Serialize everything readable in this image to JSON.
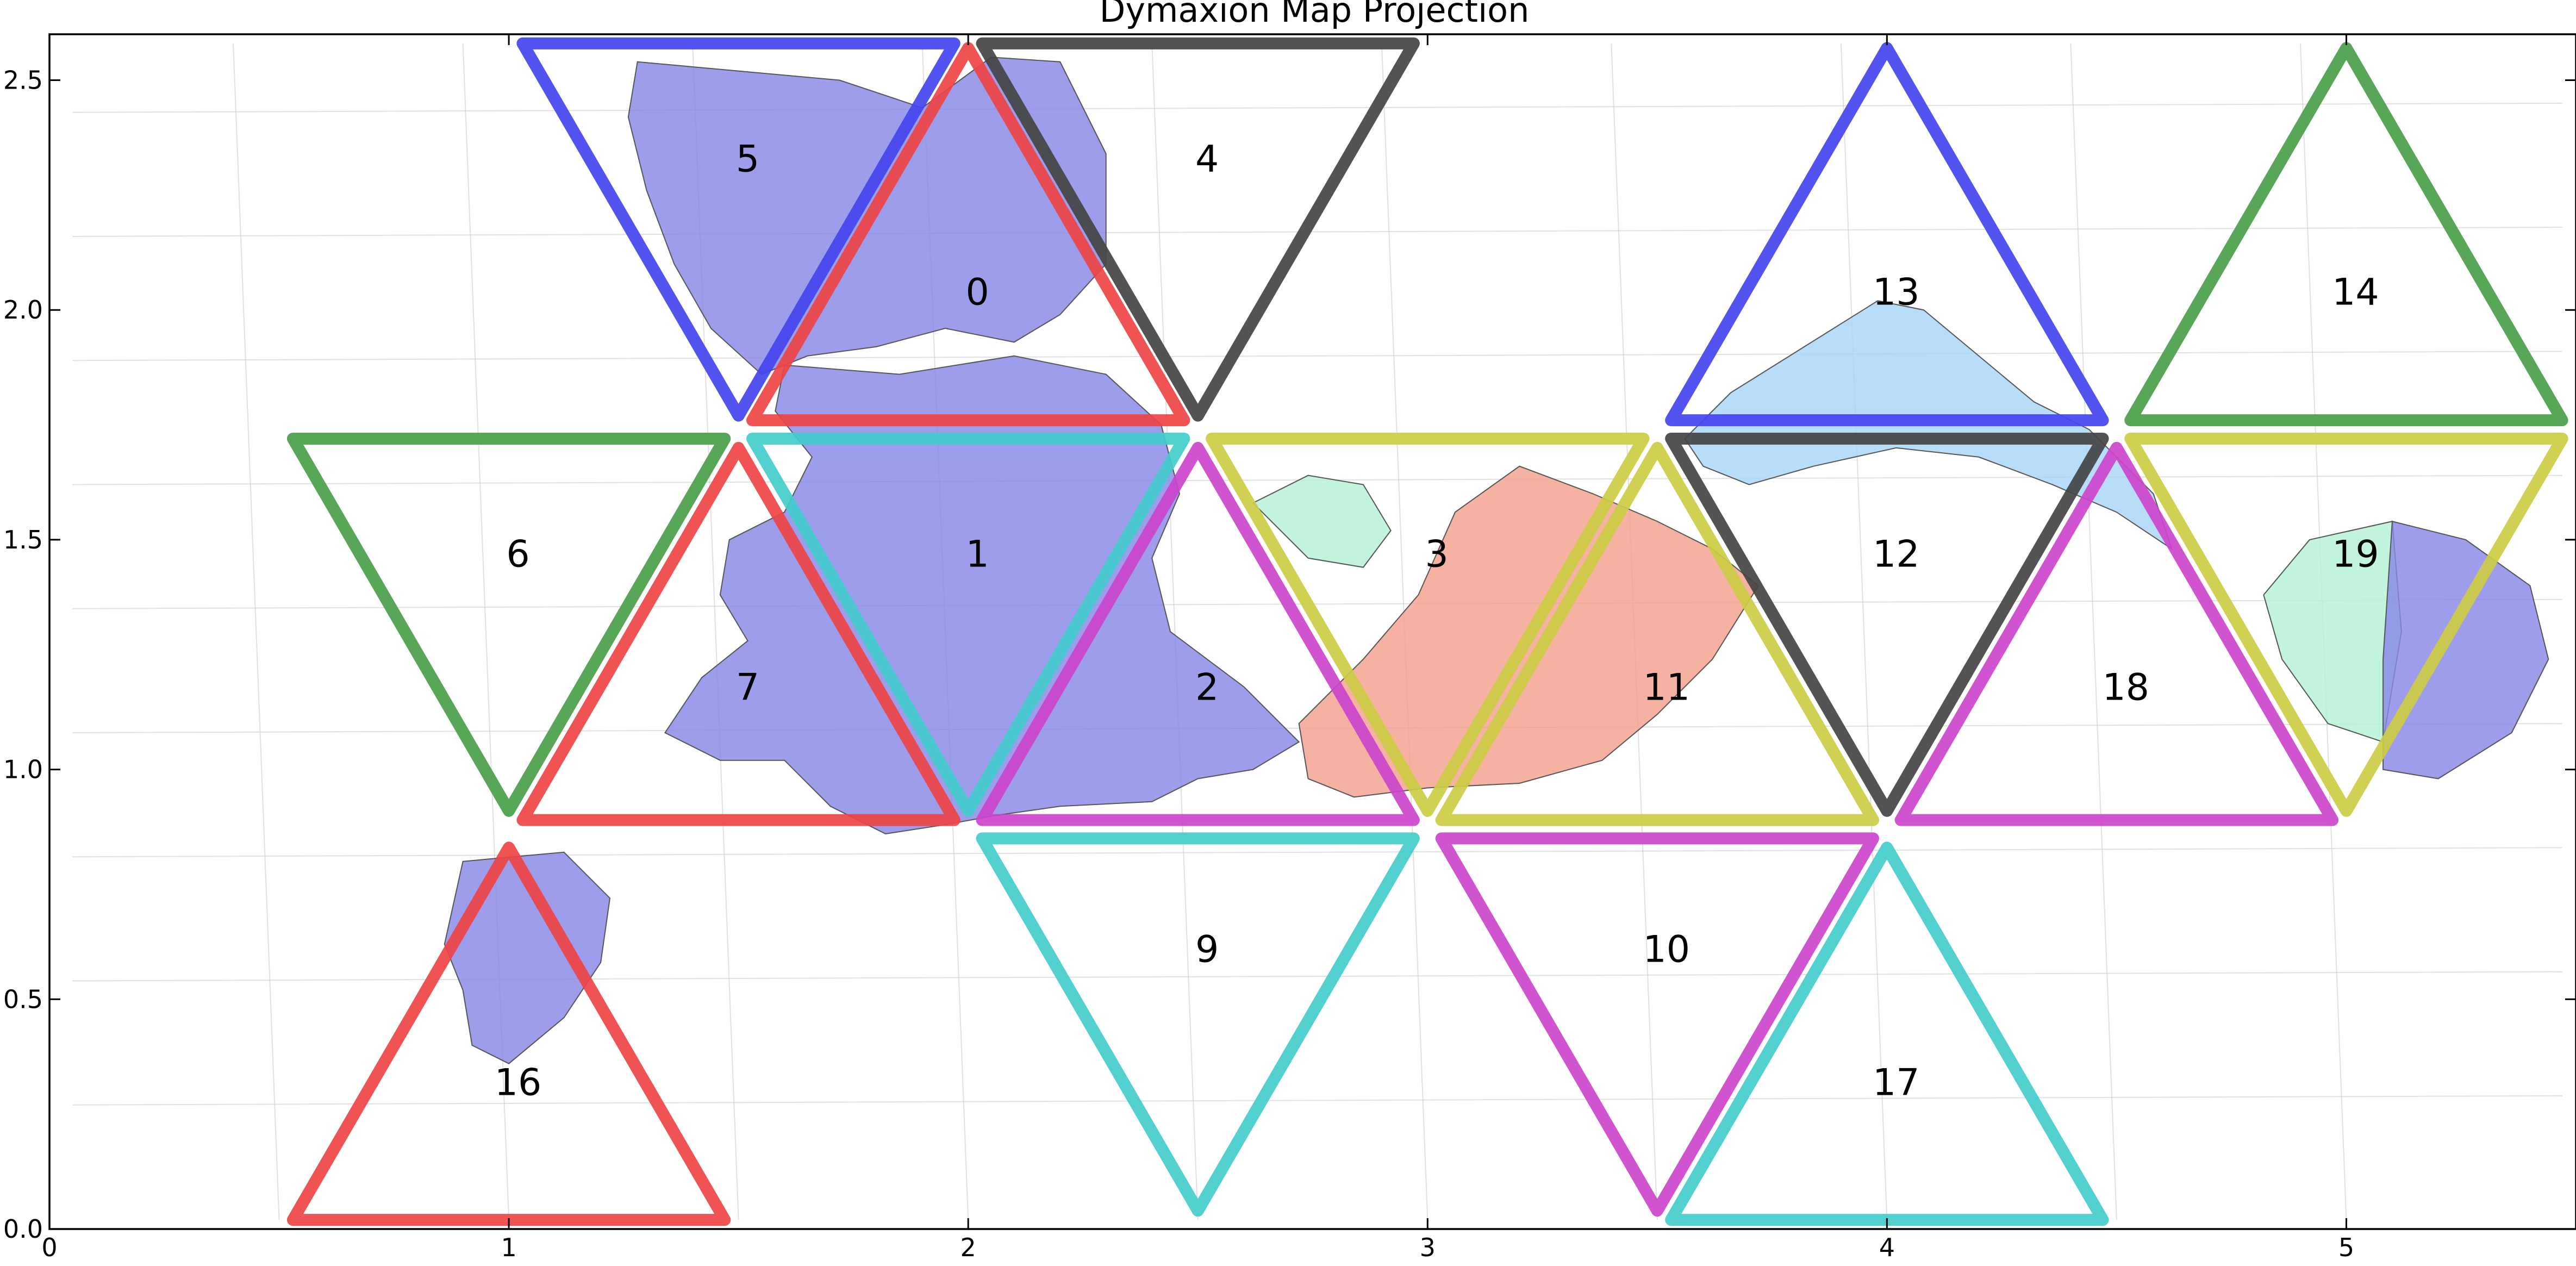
{
  "chart_data": {
    "type": "scatter",
    "title": "Dymaxion Map Projection",
    "xlim": [
      0,
      5.5
    ],
    "ylim": [
      0,
      2.6
    ],
    "xticks": [
      "0",
      "1",
      "2",
      "3",
      "4",
      "5"
    ],
    "yticks": [
      "0.0",
      "0.5",
      "1.0",
      "1.5",
      "2.0",
      "2.5"
    ],
    "grid": false,
    "colors": {
      "blue": "#4444ee",
      "red": "#ee4444",
      "black": "#444444",
      "green": "#4a9f4a",
      "cyan": "#44cccc",
      "magenta": "#cc44cc",
      "olive": "#cccc44"
    },
    "faces": [
      {
        "id": "0",
        "label_pos": [
          2.02,
          2.04
        ],
        "color": "red",
        "vertices": [
          [
            2.0,
            2.57
          ],
          [
            1.53,
            1.76
          ],
          [
            2.47,
            1.76
          ]
        ]
      },
      {
        "id": "1",
        "label_pos": [
          2.02,
          1.47
        ],
        "color": "cyan",
        "vertices": [
          [
            1.53,
            1.72
          ],
          [
            2.47,
            1.72
          ],
          [
            2.0,
            0.91
          ]
        ]
      },
      {
        "id": "2",
        "label_pos": [
          2.52,
          1.18
        ],
        "color": "magenta",
        "vertices": [
          [
            2.5,
            1.7
          ],
          [
            2.03,
            0.89
          ],
          [
            2.97,
            0.89
          ]
        ]
      },
      {
        "id": "3",
        "label_pos": [
          3.02,
          1.47
        ],
        "color": "olive",
        "vertices": [
          [
            2.53,
            1.72
          ],
          [
            3.47,
            1.72
          ],
          [
            3.0,
            0.91
          ]
        ]
      },
      {
        "id": "4",
        "label_pos": [
          2.52,
          2.33
        ],
        "color": "black",
        "vertices": [
          [
            2.03,
            2.58
          ],
          [
            2.97,
            2.58
          ],
          [
            2.5,
            1.77
          ]
        ]
      },
      {
        "id": "5",
        "label_pos": [
          1.52,
          2.33
        ],
        "color": "blue",
        "vertices": [
          [
            1.03,
            2.58
          ],
          [
            1.97,
            2.58
          ],
          [
            1.5,
            1.77
          ]
        ]
      },
      {
        "id": "6",
        "label_pos": [
          1.02,
          1.47
        ],
        "color": "green",
        "vertices": [
          [
            0.53,
            1.72
          ],
          [
            1.47,
            1.72
          ],
          [
            1.0,
            0.91
          ]
        ]
      },
      {
        "id": "7",
        "label_pos": [
          1.52,
          1.18
        ],
        "color": "red",
        "vertices": [
          [
            1.5,
            1.7
          ],
          [
            1.03,
            0.89
          ],
          [
            1.97,
            0.89
          ]
        ]
      },
      {
        "id": "9",
        "label_pos": [
          2.52,
          0.61
        ],
        "color": "cyan",
        "vertices": [
          [
            2.03,
            0.85
          ],
          [
            2.97,
            0.85
          ],
          [
            2.5,
            0.04
          ]
        ]
      },
      {
        "id": "10",
        "label_pos": [
          3.52,
          0.61
        ],
        "color": "magenta",
        "vertices": [
          [
            3.03,
            0.85
          ],
          [
            3.97,
            0.85
          ],
          [
            3.5,
            0.04
          ]
        ]
      },
      {
        "id": "11",
        "label_pos": [
          3.52,
          1.18
        ],
        "color": "olive",
        "vertices": [
          [
            3.5,
            1.7
          ],
          [
            3.03,
            0.89
          ],
          [
            3.97,
            0.89
          ]
        ]
      },
      {
        "id": "12",
        "label_pos": [
          4.02,
          1.47
        ],
        "color": "black",
        "vertices": [
          [
            3.53,
            1.72
          ],
          [
            4.47,
            1.72
          ],
          [
            4.0,
            0.91
          ]
        ]
      },
      {
        "id": "13",
        "label_pos": [
          4.02,
          2.04
        ],
        "color": "blue",
        "vertices": [
          [
            4.0,
            2.57
          ],
          [
            3.53,
            1.76
          ],
          [
            4.47,
            1.76
          ]
        ]
      },
      {
        "id": "14",
        "label_pos": [
          5.02,
          2.04
        ],
        "color": "green",
        "vertices": [
          [
            5.0,
            2.57
          ],
          [
            4.53,
            1.76
          ],
          [
            5.47,
            1.76
          ]
        ]
      },
      {
        "id": "16",
        "label_pos": [
          1.02,
          0.32
        ],
        "color": "red",
        "vertices": [
          [
            1.0,
            0.83
          ],
          [
            0.53,
            0.02
          ],
          [
            1.47,
            0.02
          ]
        ]
      },
      {
        "id": "17",
        "label_pos": [
          4.02,
          0.32
        ],
        "color": "cyan",
        "vertices": [
          [
            4.0,
            0.83
          ],
          [
            3.53,
            0.02
          ],
          [
            4.47,
            0.02
          ]
        ]
      },
      {
        "id": "18",
        "label_pos": [
          4.52,
          1.18
        ],
        "color": "magenta",
        "vertices": [
          [
            4.5,
            1.7
          ],
          [
            4.03,
            0.89
          ],
          [
            4.97,
            0.89
          ]
        ]
      },
      {
        "id": "19",
        "label_pos": [
          5.02,
          1.47
        ],
        "color": "olive",
        "vertices": [
          [
            4.53,
            1.72
          ],
          [
            5.47,
            1.72
          ],
          [
            5.0,
            0.91
          ]
        ]
      }
    ],
    "land": [
      {
        "name": "north-america",
        "color": "#8888e8",
        "points": [
          [
            1.28,
            2.54
          ],
          [
            1.5,
            2.52
          ],
          [
            1.72,
            2.5
          ],
          [
            1.9,
            2.44
          ],
          [
            2.05,
            2.55
          ],
          [
            2.2,
            2.54
          ],
          [
            2.3,
            2.34
          ],
          [
            2.3,
            2.1
          ],
          [
            2.2,
            1.99
          ],
          [
            2.1,
            1.93
          ],
          [
            1.95,
            1.96
          ],
          [
            1.8,
            1.92
          ],
          [
            1.65,
            1.9
          ],
          [
            1.55,
            1.86
          ],
          [
            1.44,
            1.96
          ],
          [
            1.36,
            2.1
          ],
          [
            1.3,
            2.26
          ],
          [
            1.26,
            2.42
          ]
        ]
      },
      {
        "name": "eurasia",
        "color": "#8888e8",
        "points": [
          [
            1.6,
            1.88
          ],
          [
            1.85,
            1.86
          ],
          [
            2.1,
            1.9
          ],
          [
            2.3,
            1.86
          ],
          [
            2.42,
            1.75
          ],
          [
            2.46,
            1.6
          ],
          [
            2.4,
            1.46
          ],
          [
            2.44,
            1.3
          ],
          [
            2.6,
            1.18
          ],
          [
            2.72,
            1.06
          ],
          [
            2.62,
            1.0
          ],
          [
            2.5,
            0.98
          ],
          [
            2.4,
            0.93
          ],
          [
            2.2,
            0.92
          ],
          [
            2.06,
            0.9
          ],
          [
            1.95,
            0.88
          ],
          [
            1.82,
            0.86
          ],
          [
            1.7,
            0.92
          ],
          [
            1.6,
            1.02
          ],
          [
            1.46,
            1.02
          ],
          [
            1.34,
            1.08
          ],
          [
            1.42,
            1.2
          ],
          [
            1.52,
            1.28
          ],
          [
            1.46,
            1.38
          ],
          [
            1.48,
            1.5
          ],
          [
            1.6,
            1.56
          ],
          [
            1.66,
            1.68
          ],
          [
            1.58,
            1.78
          ]
        ]
      },
      {
        "name": "australia-west",
        "color": "#8888e8",
        "points": [
          [
            0.9,
            0.8
          ],
          [
            1.12,
            0.82
          ],
          [
            1.22,
            0.72
          ],
          [
            1.2,
            0.58
          ],
          [
            1.12,
            0.46
          ],
          [
            1.0,
            0.36
          ],
          [
            0.92,
            0.4
          ],
          [
            0.9,
            0.52
          ],
          [
            0.86,
            0.62
          ]
        ]
      },
      {
        "name": "africa",
        "color": "#f3a08c",
        "points": [
          [
            2.72,
            1.1
          ],
          [
            2.86,
            1.24
          ],
          [
            2.98,
            1.38
          ],
          [
            3.06,
            1.56
          ],
          [
            3.2,
            1.66
          ],
          [
            3.36,
            1.6
          ],
          [
            3.5,
            1.54
          ],
          [
            3.62,
            1.48
          ],
          [
            3.72,
            1.4
          ],
          [
            3.62,
            1.24
          ],
          [
            3.5,
            1.12
          ],
          [
            3.38,
            1.02
          ],
          [
            3.2,
            0.97
          ],
          [
            3.0,
            0.96
          ],
          [
            2.84,
            0.94
          ],
          [
            2.74,
            0.98
          ]
        ]
      },
      {
        "name": "south-america",
        "color": "#a8d6f6",
        "points": [
          [
            3.56,
            1.72
          ],
          [
            3.66,
            1.82
          ],
          [
            3.82,
            1.92
          ],
          [
            3.98,
            2.02
          ],
          [
            4.08,
            2.0
          ],
          [
            4.2,
            1.9
          ],
          [
            4.32,
            1.8
          ],
          [
            4.44,
            1.74
          ],
          [
            4.58,
            1.6
          ],
          [
            4.62,
            1.48
          ],
          [
            4.5,
            1.56
          ],
          [
            4.36,
            1.62
          ],
          [
            4.2,
            1.68
          ],
          [
            4.02,
            1.7
          ],
          [
            3.84,
            1.66
          ],
          [
            3.7,
            1.62
          ],
          [
            3.6,
            1.66
          ]
        ]
      },
      {
        "name": "antarctica-green",
        "color": "#b4f0d4",
        "points": [
          [
            4.92,
            1.5
          ],
          [
            5.1,
            1.54
          ],
          [
            5.12,
            1.3
          ],
          [
            5.08,
            1.06
          ],
          [
            4.96,
            1.1
          ],
          [
            4.86,
            1.24
          ],
          [
            4.82,
            1.38
          ]
        ]
      },
      {
        "name": "antarctica-blue",
        "color": "#8888e8",
        "points": [
          [
            5.1,
            1.54
          ],
          [
            5.26,
            1.5
          ],
          [
            5.4,
            1.4
          ],
          [
            5.44,
            1.24
          ],
          [
            5.36,
            1.08
          ],
          [
            5.2,
            0.98
          ],
          [
            5.08,
            1.0
          ],
          [
            5.08,
            1.24
          ]
        ]
      },
      {
        "name": "greenland-arctic",
        "color": "#b4f0d4",
        "points": [
          [
            2.62,
            1.58
          ],
          [
            2.74,
            1.64
          ],
          [
            2.86,
            1.62
          ],
          [
            2.92,
            1.52
          ],
          [
            2.86,
            1.44
          ],
          [
            2.74,
            1.46
          ]
        ]
      }
    ]
  }
}
